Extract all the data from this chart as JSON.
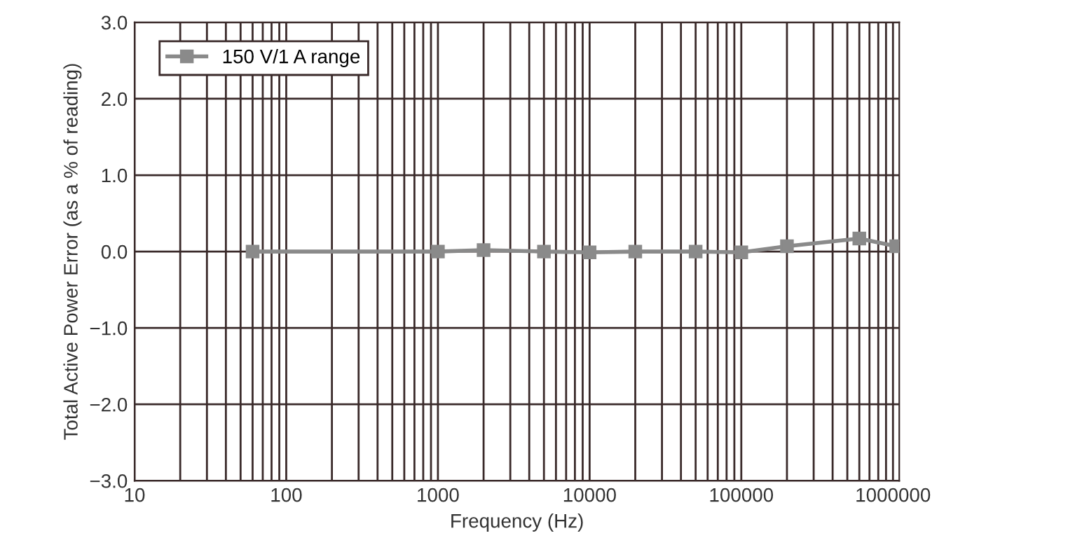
{
  "chart_data": {
    "type": "line",
    "xlabel": "Frequency (Hz)",
    "ylabel": "Total Active Power Error (as a % of reading)",
    "log": "x",
    "xlim": [
      10,
      1100000
    ],
    "xticks": [
      10,
      100,
      1000,
      10000,
      100000,
      1000000
    ],
    "ylim": [
      -3.0,
      3.0
    ],
    "yticks": [
      {
        "value": -3.0,
        "label": "−3.0"
      },
      {
        "value": -2.0,
        "label": "−2.0"
      },
      {
        "value": -1.0,
        "label": "−1.0"
      },
      {
        "value": 0.0,
        "label": "0.0"
      },
      {
        "value": 1.0,
        "label": "1.0"
      },
      {
        "value": 2.0,
        "label": "2.0"
      },
      {
        "value": 3.0,
        "label": "3.0"
      }
    ],
    "grid": true,
    "legend": "top left",
    "marker": "square",
    "line_style": "solid",
    "series": [
      {
        "name": "150 V/1 A range",
        "color": "#8a8a8a",
        "x": [
          60,
          1000,
          2000,
          5000,
          10000,
          20000,
          50000,
          100000,
          200000,
          600000,
          1050000
        ],
        "values": [
          0.0,
          0.0,
          0.02,
          0.0,
          -0.01,
          0.0,
          0.0,
          -0.01,
          0.07,
          0.17,
          0.07
        ]
      }
    ]
  }
}
